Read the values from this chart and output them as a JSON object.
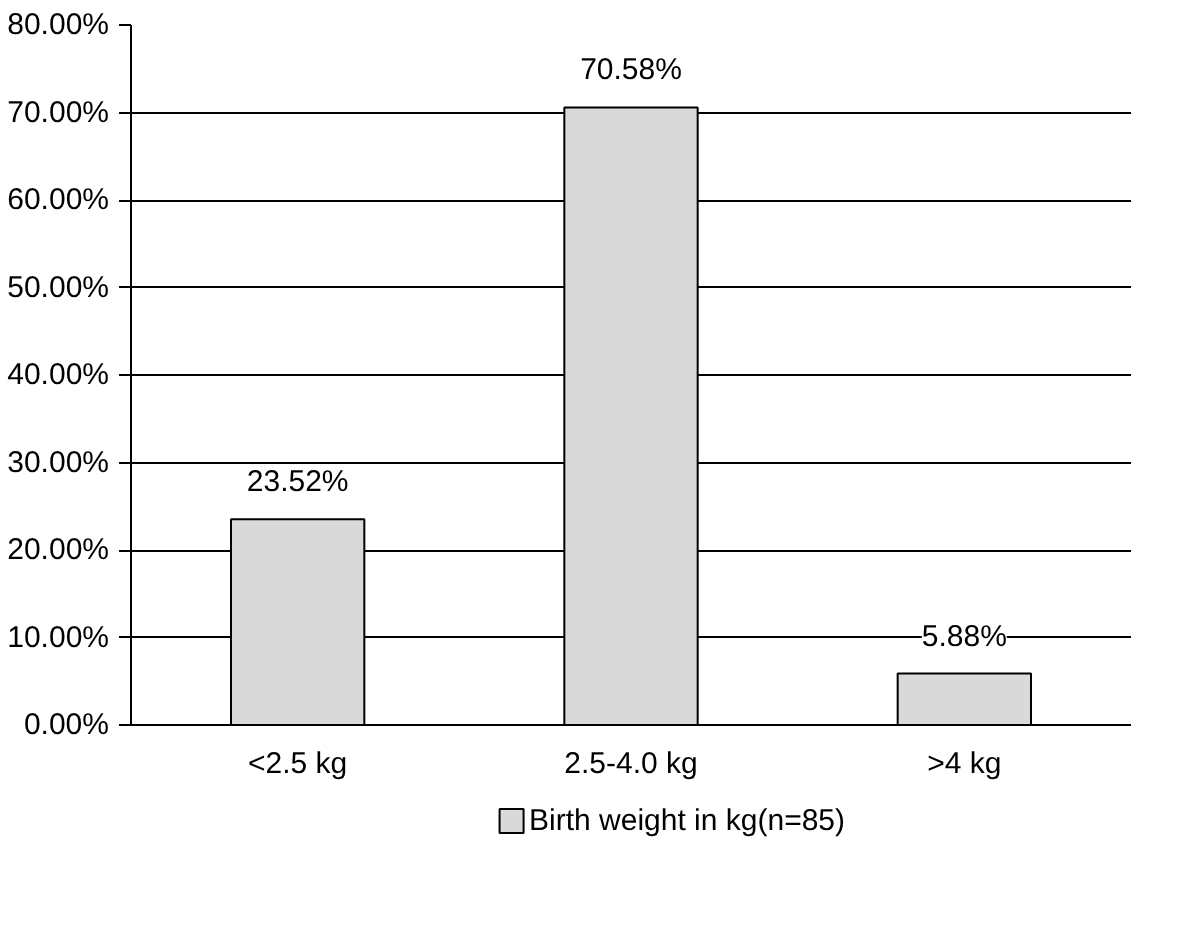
{
  "chart_data": {
    "type": "bar",
    "categories": [
      "<2.5 kg",
      "2.5-4.0 kg",
      ">4 kg"
    ],
    "series": [
      {
        "name": "Birth weight in kg(n=85)",
        "color": "#d9d9d9",
        "values": [
          23.52,
          70.58,
          5.88
        ],
        "value_labels": [
          "23.52%",
          "70.58%",
          "5.88%"
        ]
      }
    ],
    "ylim": [
      0,
      80
    ],
    "yticks": [
      {
        "value": 0,
        "label": "0.00%"
      },
      {
        "value": 10,
        "label": "10.00%"
      },
      {
        "value": 20,
        "label": "20.00%"
      },
      {
        "value": 30,
        "label": "30.00%"
      },
      {
        "value": 40,
        "label": "40.00%"
      },
      {
        "value": 50,
        "label": "50.00%"
      },
      {
        "value": 60,
        "label": "60.00%"
      },
      {
        "value": 70,
        "label": "70.00%"
      },
      {
        "value": 80,
        "label": "80.00%"
      }
    ],
    "grid": "y",
    "legend": "bottom"
  }
}
